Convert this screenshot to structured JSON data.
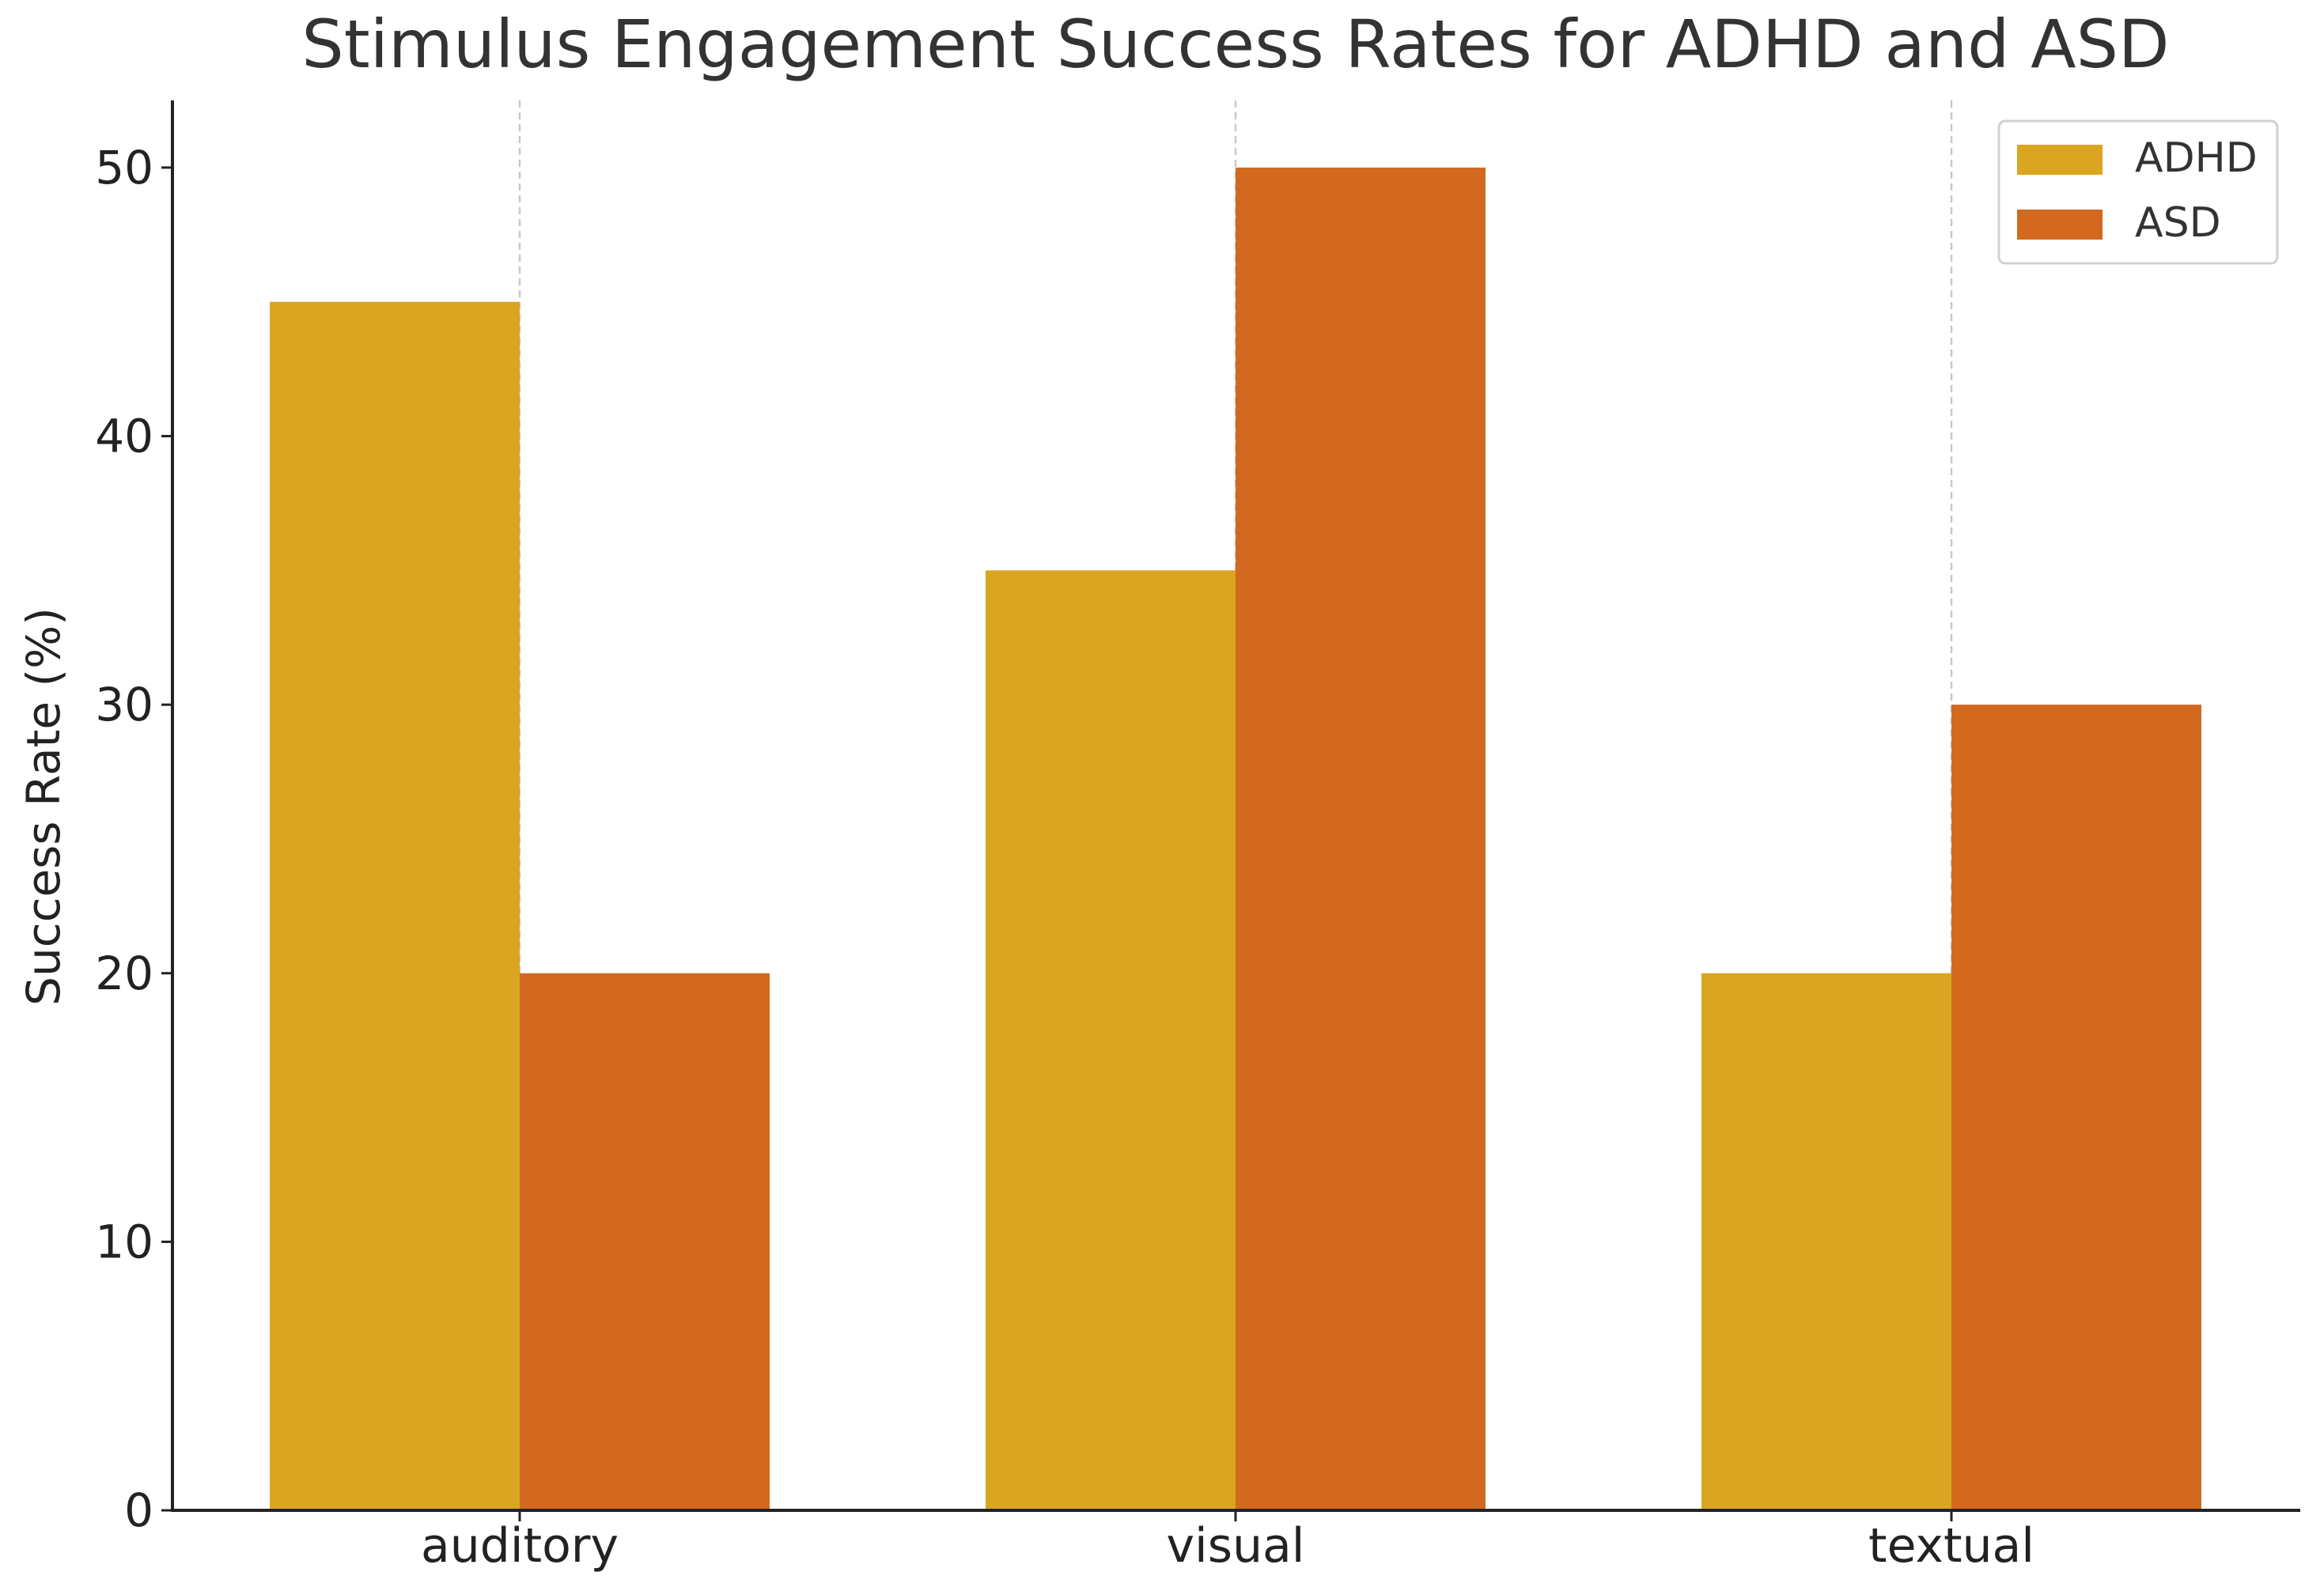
{
  "chart_data": {
    "type": "bar",
    "title": "Stimulus Engagement Success Rates for ADHD and ASD",
    "xlabel": "",
    "ylabel": "Success Rate (%)",
    "categories": [
      "auditory",
      "visual",
      "textual"
    ],
    "series": [
      {
        "name": "ADHD",
        "values": [
          45,
          35,
          20
        ],
        "color": "#DAA520"
      },
      {
        "name": "ASD",
        "values": [
          20,
          50,
          30
        ],
        "color": "#D2691E"
      }
    ],
    "ylim": [
      0,
      52.5
    ],
    "yticks": [
      0,
      10,
      20,
      30,
      40,
      50
    ],
    "grid": "x-dashed",
    "legend": {
      "position": "top-right",
      "entries": [
        "ADHD",
        "ASD"
      ]
    }
  }
}
